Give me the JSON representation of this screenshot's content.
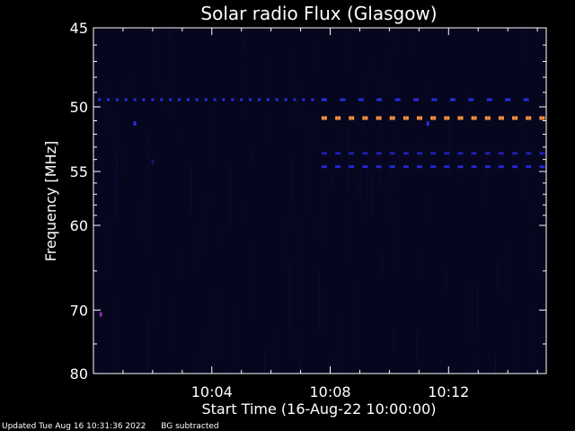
{
  "chart_data": {
    "type": "heatmap",
    "title": "Solar radio Flux (Glasgow)",
    "xlabel": "Start Time (16-Aug-22 10:00:00)",
    "ylabel": "Frequency [MHz]",
    "x_unit": "minutes after start",
    "xlim": [
      0,
      15.3
    ],
    "ylim": [
      45,
      80
    ],
    "y_ticks": [
      45,
      50,
      55,
      60,
      70,
      80
    ],
    "y_tick_labels": [
      "45",
      "50",
      "55",
      "60",
      "70",
      "80"
    ],
    "x_ticks": [
      4,
      8,
      12
    ],
    "x_tick_labels": [
      "10:04",
      "10:08",
      "10:12"
    ],
    "background_color": "#000000",
    "plot_background": "#06061e",
    "series": [
      {
        "frequency": 49.5,
        "t_start": 0.2,
        "t_end": 7.6,
        "step": 0.3,
        "color": "#2a2ae6",
        "intensity": "medium"
      },
      {
        "frequency": 49.5,
        "t_start": 7.8,
        "t_end": 15.2,
        "step": 0.62,
        "color": "#2a2ae6",
        "intensity": "medium"
      },
      {
        "frequency": 50.8,
        "t_start": 7.8,
        "t_end": 15.2,
        "step": 0.46,
        "color": "#f0a040",
        "intensity": "high"
      },
      {
        "frequency": 53.5,
        "t_start": 7.8,
        "t_end": 15.2,
        "step": 0.46,
        "color": "#1e1eaa",
        "intensity": "low"
      },
      {
        "frequency": 54.6,
        "t_start": 7.8,
        "t_end": 15.2,
        "step": 0.46,
        "color": "#2626d8",
        "intensity": "medium"
      }
    ],
    "spots": [
      {
        "time": 1.4,
        "frequency": 51.2,
        "color": "#2a2ae6"
      },
      {
        "time": 11.3,
        "frequency": 51.2,
        "color": "#2a2ae6"
      },
      {
        "time": 0.25,
        "frequency": 70.6,
        "color": "#8a2aa0"
      },
      {
        "time": 2.0,
        "frequency": 54.2,
        "color": "#16165a"
      }
    ]
  },
  "footer": {
    "updated": "Updated Tue Aug 16 10:31:36 2022",
    "note": "BG subtracted"
  }
}
